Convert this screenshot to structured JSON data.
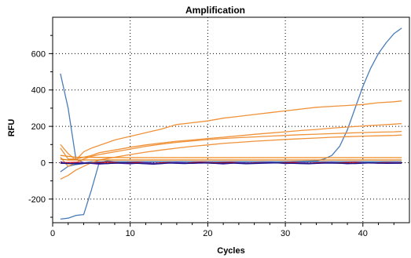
{
  "chart_data": {
    "type": "line",
    "title": "Amplification",
    "xlabel": "Cycles",
    "ylabel": "RFU",
    "xlim": [
      0,
      46
    ],
    "ylim": [
      -330,
      800
    ],
    "x_ticks": [
      0,
      10,
      20,
      30,
      40
    ],
    "y_ticks": [
      -200,
      0,
      200,
      400,
      600
    ],
    "x_tick_labels": [
      "0",
      "10",
      "20",
      "30",
      "40"
    ],
    "y_tick_labels": [
      "-200",
      "0",
      "200",
      "400",
      "600"
    ],
    "grid": "dotted",
    "legend": "none",
    "series": [
      {
        "color": "#4a7db8",
        "points": [
          [
            1,
            490
          ],
          [
            2,
            300
          ],
          [
            3,
            20
          ],
          [
            4,
            0
          ],
          [
            5,
            5
          ],
          [
            10,
            5
          ],
          [
            20,
            5
          ],
          [
            30,
            5
          ],
          [
            34,
            10
          ],
          [
            35,
            20
          ],
          [
            36,
            40
          ],
          [
            37,
            90
          ],
          [
            38,
            180
          ],
          [
            39,
            300
          ],
          [
            40,
            420
          ],
          [
            41,
            520
          ],
          [
            42,
            600
          ],
          [
            43,
            660
          ],
          [
            44,
            710
          ],
          [
            45,
            740
          ]
        ]
      },
      {
        "color": "#4a7db8",
        "points": [
          [
            1,
            -310
          ],
          [
            2,
            -305
          ],
          [
            3,
            -290
          ],
          [
            4,
            -285
          ],
          [
            5,
            -150
          ],
          [
            6,
            0
          ],
          [
            7,
            10
          ],
          [
            8,
            5
          ],
          [
            10,
            5
          ],
          [
            20,
            5
          ],
          [
            30,
            5
          ],
          [
            40,
            5
          ],
          [
            45,
            5
          ]
        ]
      },
      {
        "color": "#4a7db8",
        "points": [
          [
            1,
            -50
          ],
          [
            2,
            -20
          ],
          [
            3,
            -10
          ],
          [
            4,
            -5
          ],
          [
            5,
            0
          ],
          [
            10,
            5
          ],
          [
            20,
            5
          ],
          [
            30,
            5
          ],
          [
            40,
            5
          ],
          [
            45,
            5
          ]
        ]
      },
      {
        "color": "#f0923a",
        "points": [
          [
            1,
            100
          ],
          [
            2,
            50
          ],
          [
            3,
            15
          ],
          [
            4,
            60
          ],
          [
            5,
            80
          ],
          [
            6,
            95
          ],
          [
            7,
            110
          ],
          [
            8,
            125
          ],
          [
            10,
            145
          ],
          [
            12,
            165
          ],
          [
            14,
            185
          ],
          [
            16,
            210
          ],
          [
            18,
            220
          ],
          [
            20,
            230
          ],
          [
            22,
            245
          ],
          [
            24,
            255
          ],
          [
            26,
            265
          ],
          [
            28,
            275
          ],
          [
            30,
            285
          ],
          [
            32,
            295
          ],
          [
            34,
            305
          ],
          [
            36,
            310
          ],
          [
            38,
            315
          ],
          [
            40,
            320
          ],
          [
            42,
            330
          ],
          [
            44,
            335
          ],
          [
            45,
            340
          ]
        ]
      },
      {
        "color": "#f0923a",
        "points": [
          [
            1,
            80
          ],
          [
            2,
            20
          ],
          [
            3,
            20
          ],
          [
            4,
            30
          ],
          [
            5,
            40
          ],
          [
            6,
            55
          ],
          [
            8,
            70
          ],
          [
            10,
            85
          ],
          [
            12,
            98
          ],
          [
            14,
            108
          ],
          [
            16,
            118
          ],
          [
            18,
            125
          ],
          [
            20,
            133
          ],
          [
            22,
            140
          ],
          [
            24,
            148
          ],
          [
            26,
            156
          ],
          [
            28,
            163
          ],
          [
            30,
            170
          ],
          [
            32,
            177
          ],
          [
            34,
            183
          ],
          [
            36,
            190
          ],
          [
            38,
            196
          ],
          [
            40,
            202
          ],
          [
            42,
            207
          ],
          [
            44,
            212
          ],
          [
            45,
            215
          ]
        ]
      },
      {
        "color": "#f0923a",
        "points": [
          [
            1,
            30
          ],
          [
            2,
            -20
          ],
          [
            3,
            0
          ],
          [
            4,
            20
          ],
          [
            5,
            35
          ],
          [
            6,
            45
          ],
          [
            8,
            60
          ],
          [
            10,
            75
          ],
          [
            12,
            90
          ],
          [
            14,
            102
          ],
          [
            16,
            112
          ],
          [
            18,
            120
          ],
          [
            20,
            127
          ],
          [
            22,
            133
          ],
          [
            24,
            138
          ],
          [
            26,
            142
          ],
          [
            28,
            146
          ],
          [
            30,
            150
          ],
          [
            32,
            154
          ],
          [
            34,
            157
          ],
          [
            36,
            160
          ],
          [
            38,
            163
          ],
          [
            40,
            166
          ],
          [
            42,
            168
          ],
          [
            44,
            170
          ],
          [
            45,
            172
          ]
        ]
      },
      {
        "color": "#f0923a",
        "points": [
          [
            1,
            -90
          ],
          [
            2,
            -70
          ],
          [
            3,
            -40
          ],
          [
            4,
            -20
          ],
          [
            5,
            0
          ],
          [
            6,
            15
          ],
          [
            8,
            30
          ],
          [
            10,
            45
          ],
          [
            12,
            58
          ],
          [
            14,
            70
          ],
          [
            16,
            80
          ],
          [
            18,
            90
          ],
          [
            20,
            98
          ],
          [
            22,
            106
          ],
          [
            24,
            112
          ],
          [
            26,
            118
          ],
          [
            28,
            123
          ],
          [
            30,
            128
          ],
          [
            32,
            132
          ],
          [
            34,
            136
          ],
          [
            36,
            140
          ],
          [
            38,
            143
          ],
          [
            40,
            146
          ],
          [
            42,
            148
          ],
          [
            44,
            150
          ],
          [
            45,
            152
          ]
        ]
      },
      {
        "color": "#f08a1e",
        "points": [
          [
            1,
            40
          ],
          [
            2,
            35
          ],
          [
            3,
            30
          ],
          [
            4,
            30
          ],
          [
            10,
            28
          ],
          [
            20,
            28
          ],
          [
            30,
            28
          ],
          [
            40,
            28
          ],
          [
            45,
            28
          ]
        ]
      },
      {
        "color": "#e07a10",
        "points": [
          [
            1,
            20
          ],
          [
            2,
            15
          ],
          [
            3,
            15
          ],
          [
            4,
            15
          ],
          [
            10,
            15
          ],
          [
            20,
            15
          ],
          [
            30,
            15
          ],
          [
            40,
            15
          ],
          [
            45,
            15
          ]
        ]
      },
      {
        "color": "#d40000",
        "points": [
          [
            1,
            0
          ],
          [
            3,
            2
          ],
          [
            5,
            -2
          ],
          [
            7,
            3
          ],
          [
            9,
            -1
          ],
          [
            11,
            2
          ],
          [
            13,
            -3
          ],
          [
            15,
            1
          ],
          [
            17,
            -2
          ],
          [
            19,
            3
          ],
          [
            21,
            -1
          ],
          [
            23,
            2
          ],
          [
            25,
            -2
          ],
          [
            27,
            1
          ],
          [
            29,
            -1
          ],
          [
            31,
            2
          ],
          [
            33,
            -2
          ],
          [
            35,
            1
          ],
          [
            37,
            -1
          ],
          [
            39,
            2
          ],
          [
            41,
            -2
          ],
          [
            43,
            1
          ],
          [
            45,
            0
          ]
        ]
      },
      {
        "color": "#5a2aa8",
        "points": [
          [
            1,
            5
          ],
          [
            2,
            -5
          ],
          [
            4,
            0
          ],
          [
            6,
            -8
          ],
          [
            8,
            -2
          ],
          [
            10,
            -6
          ],
          [
            12,
            0
          ],
          [
            14,
            -5
          ],
          [
            16,
            2
          ],
          [
            18,
            -4
          ],
          [
            20,
            -1
          ],
          [
            22,
            -7
          ],
          [
            24,
            0
          ],
          [
            26,
            -3
          ],
          [
            28,
            2
          ],
          [
            30,
            -5
          ],
          [
            32,
            -1
          ],
          [
            34,
            -4
          ],
          [
            36,
            1
          ],
          [
            38,
            -6
          ],
          [
            40,
            0
          ],
          [
            42,
            -3
          ],
          [
            44,
            -1
          ],
          [
            45,
            -2
          ]
        ]
      },
      {
        "color": "#1a1a8a",
        "points": [
          [
            1,
            -3
          ],
          [
            3,
            -6
          ],
          [
            5,
            -2
          ],
          [
            7,
            -5
          ],
          [
            9,
            -1
          ],
          [
            11,
            -4
          ],
          [
            13,
            -8
          ],
          [
            15,
            -2
          ],
          [
            17,
            -5
          ],
          [
            19,
            -1
          ],
          [
            21,
            -4
          ],
          [
            23,
            -2
          ],
          [
            25,
            -6
          ],
          [
            27,
            -3
          ],
          [
            29,
            -1
          ],
          [
            31,
            -4
          ],
          [
            33,
            -6
          ],
          [
            35,
            -2
          ],
          [
            37,
            -3
          ],
          [
            39,
            -5
          ],
          [
            41,
            -1
          ],
          [
            43,
            -4
          ],
          [
            45,
            -3
          ]
        ]
      }
    ]
  }
}
